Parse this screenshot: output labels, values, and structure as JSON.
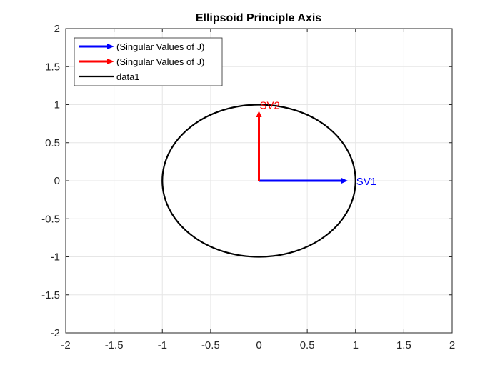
{
  "chart_data": {
    "type": "line",
    "title": "Ellipsoid Principle Axis",
    "xlabel": "",
    "ylabel": "",
    "xlim": [
      -2,
      2
    ],
    "ylim": [
      -2,
      2
    ],
    "xticks": [
      -2,
      -1.5,
      -1,
      -0.5,
      0,
      0.5,
      1,
      1.5,
      2
    ],
    "yticks": [
      -2,
      -1.5,
      -1,
      -0.5,
      0,
      0.5,
      1,
      1.5,
      2
    ],
    "xtick_labels": [
      "-2",
      "-1.5",
      "-1",
      "-0.5",
      "0",
      "0.5",
      "1",
      "1.5",
      "2"
    ],
    "ytick_labels": [
      "-2",
      "-1.5",
      "-1",
      "-0.5",
      "0",
      "0.5",
      "1",
      "1.5",
      "2"
    ],
    "grid": true,
    "legend_position": "top-left",
    "series": [
      {
        "name": "(Singular Values of J)",
        "kind": "arrow",
        "color": "#0000ff",
        "from": [
          0,
          0
        ],
        "to": [
          0.92,
          0
        ]
      },
      {
        "name": "(Singular Values of J)",
        "kind": "arrow",
        "color": "#ff0000",
        "from": [
          0,
          0
        ],
        "to": [
          0,
          0.92
        ]
      },
      {
        "name": "data1",
        "kind": "ellipse",
        "color": "#000000",
        "center": [
          0,
          0
        ],
        "radii": [
          1,
          1
        ]
      }
    ],
    "annotations": [
      {
        "text": "SV1",
        "x": 1.0,
        "y": 0,
        "color": "#0000ff"
      },
      {
        "text": "SV2",
        "x": 0.0,
        "y": 1.0,
        "color": "#ff0000"
      }
    ]
  }
}
